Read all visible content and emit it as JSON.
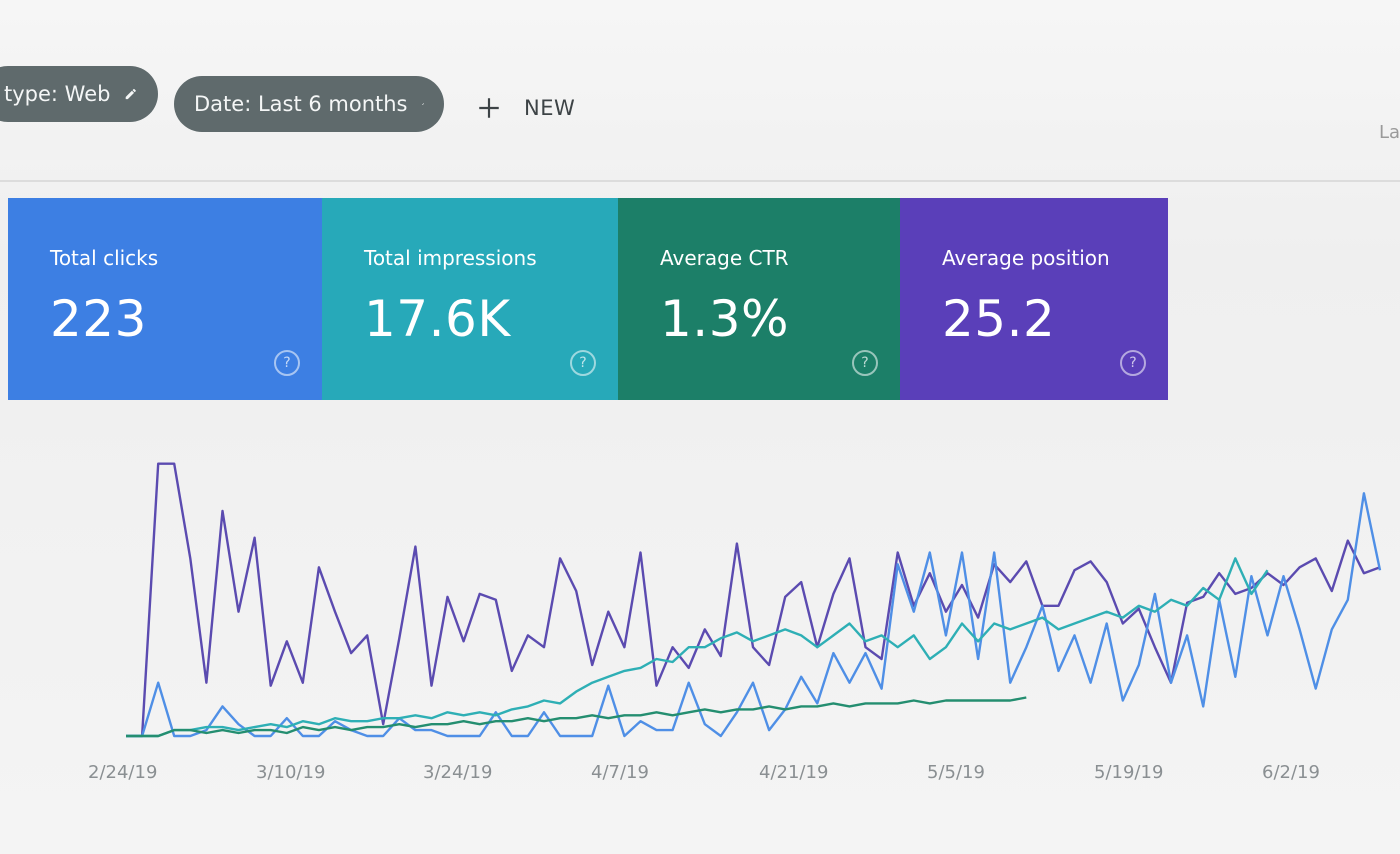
{
  "filters": {
    "type_chip": {
      "label": "type: Web",
      "icon": "pencil-icon"
    },
    "date_chip": {
      "label": "Date: Last 6 months",
      "icon": "pencil-icon"
    },
    "new_button": {
      "label": "NEW",
      "icon": "plus-icon"
    },
    "edge_text": "La"
  },
  "metrics": [
    {
      "label": "Total clicks",
      "value": "223",
      "color": "#3d7fe3",
      "help_icon": "help-icon"
    },
    {
      "label": "Total impressions",
      "value": "17.6K",
      "color": "#27a9b9",
      "help_icon": "help-icon"
    },
    {
      "label": "Average CTR",
      "value": "1.3%",
      "color": "#1c7f68",
      "help_icon": "help-icon"
    },
    {
      "label": "Average position",
      "value": "25.2",
      "color": "#5a3fb9",
      "help_icon": "help-icon"
    }
  ],
  "help_glyph": "?",
  "chart_data": {
    "type": "line",
    "title": "",
    "xlabel": "",
    "ylabel": "",
    "x_tick_labels": [
      "2/24/19",
      "3/10/19",
      "3/24/19",
      "4/7/19",
      "4/21/19",
      "5/5/19",
      "5/19/19",
      "6/2/19"
    ],
    "grid": false,
    "series": [
      {
        "color": "#5b4bb0",
        "values": [
          0.0,
          0.0,
          0.92,
          0.92,
          0.6,
          0.18,
          0.76,
          0.42,
          0.67,
          0.17,
          0.32,
          0.18,
          0.57,
          0.42,
          0.28,
          0.34,
          0.04,
          0.33,
          0.64,
          0.17,
          0.47,
          0.32,
          0.48,
          0.46,
          0.22,
          0.34,
          0.3,
          0.6,
          0.49,
          0.24,
          0.42,
          0.3,
          0.62,
          0.17,
          0.3,
          0.23,
          0.36,
          0.27,
          0.65,
          0.3,
          0.24,
          0.47,
          0.52,
          0.3,
          0.48,
          0.6,
          0.3,
          0.26,
          0.62,
          0.44,
          0.55,
          0.42,
          0.51,
          0.4,
          0.58,
          0.52,
          0.59,
          0.44,
          0.44,
          0.56,
          0.59,
          0.52,
          0.38,
          0.43,
          0.3,
          0.18,
          0.45,
          0.47,
          0.55,
          0.48,
          0.5,
          0.55,
          0.51,
          0.57,
          0.6,
          0.49,
          0.66,
          0.55,
          0.57
        ]
      },
      {
        "color": "#4f8fe6",
        "values": [
          0.0,
          0.0,
          0.18,
          0.0,
          0.0,
          0.02,
          0.1,
          0.04,
          0.0,
          0.0,
          0.06,
          0.0,
          0.0,
          0.05,
          0.02,
          0.0,
          0.0,
          0.06,
          0.02,
          0.02,
          0.0,
          0.0,
          0.0,
          0.08,
          0.0,
          0.0,
          0.08,
          0.0,
          0.0,
          0.0,
          0.17,
          0.0,
          0.05,
          0.02,
          0.02,
          0.18,
          0.04,
          0.0,
          0.08,
          0.18,
          0.02,
          0.09,
          0.2,
          0.11,
          0.28,
          0.18,
          0.28,
          0.16,
          0.58,
          0.42,
          0.62,
          0.34,
          0.62,
          0.26,
          0.62,
          0.18,
          0.3,
          0.44,
          0.22,
          0.34,
          0.18,
          0.38,
          0.12,
          0.24,
          0.48,
          0.18,
          0.34,
          0.1,
          0.46,
          0.2,
          0.54,
          0.34,
          0.54,
          0.36,
          0.16,
          0.36,
          0.46,
          0.82,
          0.56
        ]
      },
      {
        "color": "#2eafb5",
        "values": [
          0.0,
          0.0,
          0.0,
          0.02,
          0.02,
          0.03,
          0.03,
          0.02,
          0.03,
          0.04,
          0.03,
          0.05,
          0.04,
          0.06,
          0.05,
          0.05,
          0.06,
          0.06,
          0.07,
          0.06,
          0.08,
          0.07,
          0.08,
          0.07,
          0.09,
          0.1,
          0.12,
          0.11,
          0.15,
          0.18,
          0.2,
          0.22,
          0.23,
          0.26,
          0.25,
          0.3,
          0.3,
          0.33,
          0.35,
          0.32,
          0.34,
          0.36,
          0.34,
          0.3,
          0.34,
          0.38,
          0.32,
          0.34,
          0.3,
          0.34,
          0.26,
          0.3,
          0.38,
          0.32,
          0.38,
          0.36,
          0.38,
          0.4,
          0.36,
          0.38,
          0.4,
          0.42,
          0.4,
          0.44,
          0.42,
          0.46,
          0.44,
          0.5,
          0.46,
          0.6,
          0.48,
          0.56
        ]
      },
      {
        "color": "#248e70",
        "values": [
          0.0,
          0.0,
          0.0,
          0.02,
          0.02,
          0.01,
          0.02,
          0.01,
          0.02,
          0.02,
          0.01,
          0.03,
          0.02,
          0.03,
          0.02,
          0.03,
          0.03,
          0.04,
          0.03,
          0.04,
          0.04,
          0.05,
          0.04,
          0.05,
          0.05,
          0.06,
          0.05,
          0.06,
          0.06,
          0.07,
          0.06,
          0.07,
          0.07,
          0.08,
          0.07,
          0.08,
          0.09,
          0.08,
          0.09,
          0.09,
          0.1,
          0.09,
          0.1,
          0.1,
          0.11,
          0.1,
          0.11,
          0.11,
          0.11,
          0.12,
          0.11,
          0.12,
          0.12,
          0.12,
          0.12,
          0.12,
          0.13
        ]
      }
    ]
  }
}
